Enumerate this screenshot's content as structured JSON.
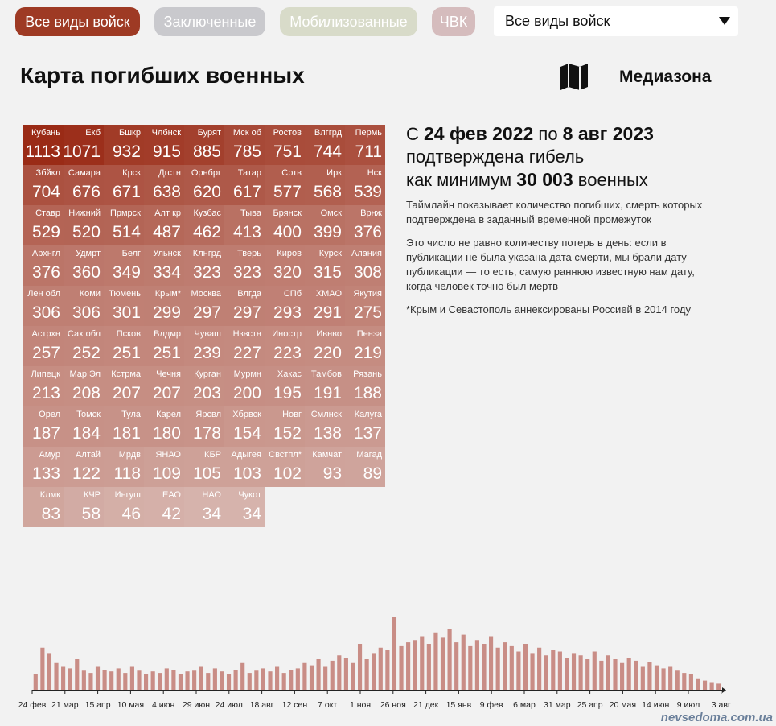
{
  "filters": [
    "Все виды войск",
    "Заключенные",
    "Мобилизованные",
    "ЧВК"
  ],
  "dropdown": "Все виды войск",
  "title": "Карта погибших военных",
  "brand": "Медиазона",
  "map": {
    "color": "#9a2b16",
    "tiles": [
      {
        "label": "Кубань",
        "value": 1113
      },
      {
        "label": "Екб",
        "value": 1071
      },
      {
        "label": "Бшкр",
        "value": 932
      },
      {
        "label": "Члбнск",
        "value": 915
      },
      {
        "label": "Бурят",
        "value": 885
      },
      {
        "label": "Мск об",
        "value": 785
      },
      {
        "label": "Ростов",
        "value": 751
      },
      {
        "label": "Влггрд",
        "value": 744
      },
      {
        "label": "Пермь",
        "value": 711
      },
      {
        "label": "Збйкл",
        "value": 704
      },
      {
        "label": "Самара",
        "value": 676
      },
      {
        "label": "Крск",
        "value": 671
      },
      {
        "label": "Дгстн",
        "value": 638
      },
      {
        "label": "Орнбрг",
        "value": 620
      },
      {
        "label": "Татар",
        "value": 617
      },
      {
        "label": "Сртв",
        "value": 577
      },
      {
        "label": "Ирк",
        "value": 568
      },
      {
        "label": "Нск",
        "value": 539
      },
      {
        "label": "Ставр",
        "value": 529
      },
      {
        "label": "Нижний",
        "value": 520
      },
      {
        "label": "Прмрск",
        "value": 514
      },
      {
        "label": "Алт кр",
        "value": 487
      },
      {
        "label": "Кузбас",
        "value": 462
      },
      {
        "label": "Тыва",
        "value": 413
      },
      {
        "label": "Брянск",
        "value": 400
      },
      {
        "label": "Омск",
        "value": 399
      },
      {
        "label": "Врнж",
        "value": 376
      },
      {
        "label": "Архнгл",
        "value": 376
      },
      {
        "label": "Удмрт",
        "value": 360
      },
      {
        "label": "Белг",
        "value": 349
      },
      {
        "label": "Ульнск",
        "value": 334
      },
      {
        "label": "Клнгрд",
        "value": 323
      },
      {
        "label": "Тверь",
        "value": 323
      },
      {
        "label": "Киров",
        "value": 320
      },
      {
        "label": "Курск",
        "value": 315
      },
      {
        "label": "Алания",
        "value": 308
      },
      {
        "label": "Лен обл",
        "value": 306
      },
      {
        "label": "Коми",
        "value": 306
      },
      {
        "label": "Тюмень",
        "value": 301
      },
      {
        "label": "Крым*",
        "value": 299
      },
      {
        "label": "Москва",
        "value": 297
      },
      {
        "label": "Влгда",
        "value": 297
      },
      {
        "label": "СПб",
        "value": 293
      },
      {
        "label": "ХМАО",
        "value": 291
      },
      {
        "label": "Якутия",
        "value": 275
      },
      {
        "label": "Астрхн",
        "value": 257
      },
      {
        "label": "Сах обл",
        "value": 252
      },
      {
        "label": "Псков",
        "value": 251
      },
      {
        "label": "Влдмр",
        "value": 251
      },
      {
        "label": "Чуваш",
        "value": 239
      },
      {
        "label": "Нзвстн",
        "value": 227
      },
      {
        "label": "Иностр",
        "value": 223
      },
      {
        "label": "Ивнво",
        "value": 220
      },
      {
        "label": "Пенза",
        "value": 219
      },
      {
        "label": "Липецк",
        "value": 213
      },
      {
        "label": "Мар Эл",
        "value": 208
      },
      {
        "label": "Кстрма",
        "value": 207
      },
      {
        "label": "Чечня",
        "value": 207
      },
      {
        "label": "Курган",
        "value": 203
      },
      {
        "label": "Мурмн",
        "value": 200
      },
      {
        "label": "Хакас",
        "value": 195
      },
      {
        "label": "Тамбов",
        "value": 191
      },
      {
        "label": "Рязань",
        "value": 188
      },
      {
        "label": "Орел",
        "value": 187
      },
      {
        "label": "Томск",
        "value": 184
      },
      {
        "label": "Тула",
        "value": 181
      },
      {
        "label": "Карел",
        "value": 180
      },
      {
        "label": "Ярсвл",
        "value": 178
      },
      {
        "label": "Хбрвск",
        "value": 154
      },
      {
        "label": "Новг",
        "value": 152
      },
      {
        "label": "Смлнск",
        "value": 138
      },
      {
        "label": "Калуга",
        "value": 137
      },
      {
        "label": "Амур",
        "value": 133
      },
      {
        "label": "Алтай",
        "value": 122
      },
      {
        "label": "Мрдв",
        "value": 118
      },
      {
        "label": "ЯНАО",
        "value": 109
      },
      {
        "label": "КБР",
        "value": 105
      },
      {
        "label": "Адыгея",
        "value": 103
      },
      {
        "label": "Свстпл*",
        "value": 102
      },
      {
        "label": "Камчат",
        "value": 93
      },
      {
        "label": "Магад",
        "value": 89
      },
      {
        "label": "Клмк",
        "value": 83
      },
      {
        "label": "КЧР",
        "value": 58
      },
      {
        "label": "Ингуш",
        "value": 46
      },
      {
        "label": "ЕАО",
        "value": 42
      },
      {
        "label": "НАО",
        "value": 34
      },
      {
        "label": "Чукот",
        "value": 34
      }
    ]
  },
  "summary": {
    "line1": [
      "С ",
      "24 фев 2022",
      " по ",
      "8 авг 2023"
    ],
    "line2": "подтверждена гибель",
    "line3": [
      "как минимум ",
      "30 003",
      " военных"
    ],
    "notes": [
      "Таймлайн показывает количество погибших, смерть которых подтверждена в заданный временной промежуток",
      "Это число не равно количеству потерь в день: если в публикации не была указана дата смерти, мы брали дату публикации — то есть, самую раннюю известную нам дату, когда человек точно был мертв",
      "*Крым и Севастополь аннексированы Россией в 2014 году"
    ]
  },
  "timeline": {
    "color": "#c98d86",
    "ylim": [
      0,
      100
    ],
    "values": [
      20,
      55,
      48,
      35,
      30,
      28,
      40,
      25,
      22,
      30,
      26,
      24,
      28,
      22,
      30,
      25,
      20,
      24,
      22,
      28,
      26,
      20,
      24,
      25,
      30,
      22,
      28,
      24,
      20,
      26,
      35,
      22,
      25,
      28,
      24,
      30,
      22,
      26,
      28,
      35,
      32,
      40,
      30,
      38,
      45,
      42,
      35,
      60,
      40,
      48,
      55,
      52,
      95,
      58,
      62,
      65,
      70,
      60,
      75,
      68,
      80,
      62,
      72,
      58,
      65,
      60,
      70,
      55,
      62,
      58,
      50,
      60,
      48,
      55,
      45,
      52,
      50,
      42,
      48,
      45,
      40,
      50,
      38,
      45,
      40,
      35,
      42,
      38,
      30,
      36,
      32,
      28,
      30,
      25,
      22,
      20,
      15,
      12,
      10,
      8
    ],
    "xticks": [
      "24 фев",
      "21 мар",
      "15 апр",
      "10 мая",
      "4 июн",
      "29 июн",
      "24 июл",
      "18 авг",
      "12 сен",
      "7 окт",
      "1 ноя",
      "26 ноя",
      "21 дек",
      "15 янв",
      "9 фев",
      "6 мар",
      "31 мар",
      "25 апр",
      "20 мая",
      "14 июн",
      "9 июл",
      "3 авг"
    ]
  },
  "watermark": "nevsedoma.com.ua"
}
